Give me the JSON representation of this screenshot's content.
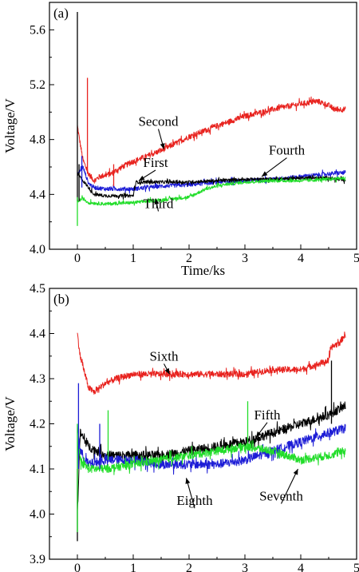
{
  "chart_data": [
    {
      "panel_label": "(a)",
      "type": "line",
      "xlabel": "Time/ks",
      "ylabel": "Voltage/V",
      "xlim": [
        -0.5,
        5
      ],
      "ylim": [
        4.0,
        5.8
      ],
      "x_ticks": [
        "0",
        "1",
        "2",
        "3",
        "4",
        "5"
      ],
      "x_tick_values": [
        0,
        1,
        2,
        3,
        4,
        5
      ],
      "y_ticks": [
        "4.0",
        "4.4",
        "4.8",
        "5.2",
        "5.6"
      ],
      "y_tick_values": [
        4.0,
        4.4,
        4.8,
        5.2,
        5.6
      ],
      "grid": false,
      "series": [
        {
          "name": "Second",
          "color": "#e8231f",
          "noise": 0.02,
          "x": [
            0,
            0.03,
            0.1,
            0.2,
            0.3,
            0.4,
            0.6,
            0.8,
            1.0,
            1.5,
            2.0,
            2.5,
            3.0,
            3.5,
            4.0,
            4.3,
            4.5,
            4.6,
            4.8
          ],
          "y": [
            4.9,
            4.82,
            4.65,
            4.55,
            4.5,
            4.53,
            4.55,
            4.6,
            4.64,
            4.72,
            4.82,
            4.9,
            4.97,
            5.02,
            5.06,
            5.08,
            5.05,
            5.02,
            5.02
          ]
        },
        {
          "name": "First",
          "color": "#1c1cd6",
          "noise": 0.015,
          "x": [
            0,
            0.1,
            0.2,
            0.3,
            0.5,
            1.0,
            1.5,
            2.0,
            2.5,
            3.0,
            3.5,
            4.0,
            4.5,
            4.8
          ],
          "y": [
            4.55,
            4.6,
            4.48,
            4.45,
            4.44,
            4.44,
            4.46,
            4.47,
            4.49,
            4.5,
            4.51,
            4.53,
            4.55,
            4.56
          ]
        },
        {
          "name": "Fourth",
          "color": "#000000",
          "noise": 0.012,
          "x": [
            0,
            0.1,
            0.3,
            0.5,
            1.0,
            1.05,
            1.5,
            2.0,
            2.5,
            3.0,
            3.5,
            4.0,
            4.5,
            4.8
          ],
          "y": [
            4.55,
            4.5,
            4.4,
            4.39,
            4.39,
            4.49,
            4.49,
            4.49,
            4.5,
            4.51,
            4.51,
            4.52,
            4.52,
            4.5
          ]
        },
        {
          "name": "Third",
          "color": "#22dd2a",
          "noise": 0.012,
          "x": [
            0,
            0.1,
            0.2,
            0.5,
            1.0,
            1.5,
            2.0,
            2.3,
            2.6,
            3.0,
            3.5,
            4.0,
            4.5,
            4.8
          ],
          "y": [
            4.35,
            4.37,
            4.34,
            4.33,
            4.34,
            4.36,
            4.38,
            4.44,
            4.47,
            4.49,
            4.5,
            4.5,
            4.51,
            4.52
          ]
        }
      ],
      "spikes": [
        {
          "x": 0.0,
          "from": 4.35,
          "to": 5.73,
          "color": "#000000"
        },
        {
          "x": 0.03,
          "from": 4.35,
          "to": 4.62,
          "color": "#000000"
        },
        {
          "x": 0.0,
          "from": 4.17,
          "to": 4.38,
          "color": "#22dd2a"
        },
        {
          "x": 0.08,
          "from": 4.45,
          "to": 4.68,
          "color": "#1c1cd6"
        },
        {
          "x": 0.18,
          "from": 4.55,
          "to": 5.25,
          "color": "#e8231f"
        },
        {
          "x": 0.65,
          "from": 4.46,
          "to": 4.62,
          "color": "#e8231f"
        }
      ],
      "annotations": [
        {
          "text": "Second",
          "tx": 1.45,
          "ty": 4.9,
          "ax": 1.55,
          "ay": 4.73
        },
        {
          "text": "First",
          "tx": 1.4,
          "ty": 4.6,
          "ax": 1.1,
          "ay": 4.5
        },
        {
          "text": "Fourth",
          "tx": 3.75,
          "ty": 4.69,
          "ax": 3.3,
          "ay": 4.53
        },
        {
          "text": "Third",
          "tx": 1.45,
          "ty": 4.3,
          "ax": 1.4,
          "ay": 4.37
        }
      ]
    },
    {
      "panel_label": "(b)",
      "type": "line",
      "xlabel": "Time/ks",
      "ylabel": "Voltage/V",
      "xlim": [
        -0.5,
        5
      ],
      "ylim": [
        3.9,
        4.5
      ],
      "x_ticks": [
        "0",
        "1",
        "2",
        "3",
        "4",
        "5"
      ],
      "x_tick_values": [
        0,
        1,
        2,
        3,
        4,
        5
      ],
      "y_ticks": [
        "3.9",
        "4.0",
        "4.1",
        "4.2",
        "4.3",
        "4.4",
        "4.5"
      ],
      "y_tick_values": [
        3.9,
        4.0,
        4.1,
        4.2,
        4.3,
        4.4,
        4.5
      ],
      "grid": false,
      "series": [
        {
          "name": "Sixth",
          "color": "#e8231f",
          "noise": 0.007,
          "x": [
            0,
            0.05,
            0.2,
            0.3,
            0.5,
            0.7,
            1.0,
            1.5,
            2.0,
            2.5,
            3.0,
            3.5,
            4.0,
            4.5,
            4.55,
            4.7,
            4.8
          ],
          "y": [
            4.4,
            4.35,
            4.28,
            4.27,
            4.29,
            4.3,
            4.31,
            4.31,
            4.31,
            4.31,
            4.31,
            4.32,
            4.32,
            4.34,
            4.37,
            4.38,
            4.4
          ]
        },
        {
          "name": "Fifth",
          "color": "#000000",
          "noise": 0.01,
          "x": [
            0,
            0.05,
            0.2,
            0.5,
            1.0,
            1.5,
            2.0,
            2.5,
            3.0,
            3.5,
            4.0,
            4.5,
            4.8
          ],
          "y": [
            4.0,
            4.18,
            4.15,
            4.13,
            4.13,
            4.13,
            4.14,
            4.15,
            4.16,
            4.18,
            4.2,
            4.22,
            4.24
          ]
        },
        {
          "name": "Eighth",
          "color": "#1c1cd6",
          "noise": 0.01,
          "x": [
            0,
            0.05,
            0.2,
            0.5,
            1.0,
            1.5,
            2.0,
            2.5,
            3.0,
            3.5,
            4.0,
            4.5,
            4.8
          ],
          "y": [
            4.2,
            4.14,
            4.11,
            4.12,
            4.12,
            4.11,
            4.11,
            4.11,
            4.12,
            4.14,
            4.16,
            4.18,
            4.19
          ]
        },
        {
          "name": "Seventh",
          "color": "#22dd2a",
          "noise": 0.009,
          "x": [
            0,
            0.05,
            0.2,
            0.5,
            1.0,
            1.5,
            2.0,
            2.5,
            3.0,
            3.5,
            4.0,
            4.5,
            4.8
          ],
          "y": [
            4.15,
            4.12,
            4.1,
            4.1,
            4.11,
            4.12,
            4.13,
            4.14,
            4.15,
            4.14,
            4.12,
            4.13,
            4.14
          ]
        }
      ],
      "spikes": [
        {
          "x": 0.0,
          "from": 3.94,
          "to": 4.1,
          "color": "#000000"
        },
        {
          "x": 0.0,
          "from": 3.96,
          "to": 4.2,
          "color": "#22dd2a"
        },
        {
          "x": 0.02,
          "from": 4.1,
          "to": 4.29,
          "color": "#1c1cd6"
        },
        {
          "x": 0.4,
          "from": 4.1,
          "to": 4.2,
          "color": "#1c1cd6"
        },
        {
          "x": 0.55,
          "from": 4.12,
          "to": 4.23,
          "color": "#22dd2a"
        },
        {
          "x": 3.05,
          "from": 4.14,
          "to": 4.25,
          "color": "#22dd2a"
        },
        {
          "x": 4.55,
          "from": 4.2,
          "to": 4.34,
          "color": "#000000"
        }
      ],
      "annotations": [
        {
          "text": "Sixth",
          "tx": 1.55,
          "ty": 4.34,
          "ax": 1.65,
          "ay": 4.31
        },
        {
          "text": "Fifth",
          "tx": 3.4,
          "ty": 4.21,
          "ax": 3.2,
          "ay": 4.17
        },
        {
          "text": "Eighth",
          "tx": 2.1,
          "ty": 4.02,
          "ax": 1.95,
          "ay": 4.08
        },
        {
          "text": "Seventh",
          "tx": 3.65,
          "ty": 4.03,
          "ax": 3.95,
          "ay": 4.1
        }
      ]
    }
  ]
}
